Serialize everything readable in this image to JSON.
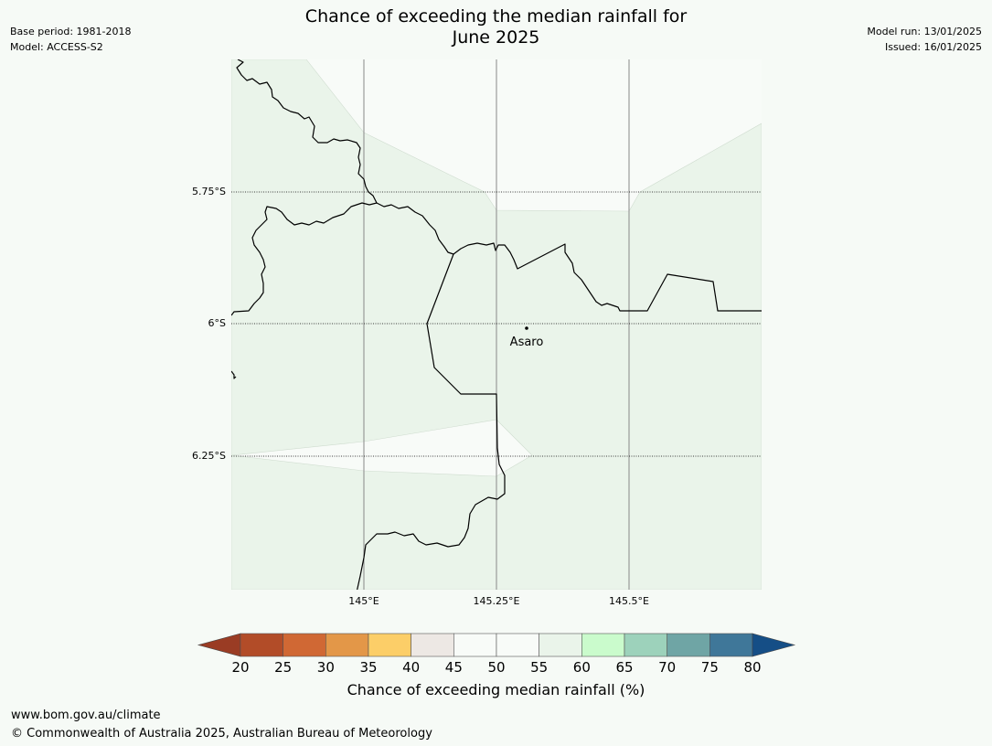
{
  "header": {
    "title_line1": "Chance of exceeding the median rainfall for",
    "title_line2": "June 2025",
    "base_period": "Base period: 1981-2018",
    "model": "Model: ACCESS-S2",
    "model_run": "Model run: 13/01/2025",
    "issued": "Issued: 16/01/2025"
  },
  "map": {
    "lat_labels": [
      "5.75°S",
      "6°S",
      "6.25°S"
    ],
    "lon_labels": [
      "145°E",
      "145.25°E",
      "145.5°E"
    ],
    "place": {
      "name": "Asaro"
    },
    "colors": {
      "fill_55_60": "#eaf4ea",
      "fill_50_55": "#f8fbf8",
      "border": "#000000",
      "gridline": "#888888"
    }
  },
  "colorbar": {
    "title": "Chance of exceeding median rainfall (%)",
    "ticks": [
      "20",
      "25",
      "30",
      "35",
      "40",
      "45",
      "50",
      "55",
      "60",
      "65",
      "70",
      "75",
      "80"
    ],
    "below_color": "#9a3c24",
    "above_color": "#154e86",
    "colors": [
      "#b24c28",
      "#d06834",
      "#e39748",
      "#fcce68",
      "#ede8e4",
      "#f8fbf8",
      "#f8fbf8",
      "#eaf4ea",
      "#cafbcc",
      "#9dd2bb",
      "#6fa5a5",
      "#3f7799"
    ]
  },
  "footer": {
    "url": "www.bom.gov.au/climate",
    "copyright": "© Commonwealth of Australia 2025, Australian Bureau of Meteorology"
  }
}
